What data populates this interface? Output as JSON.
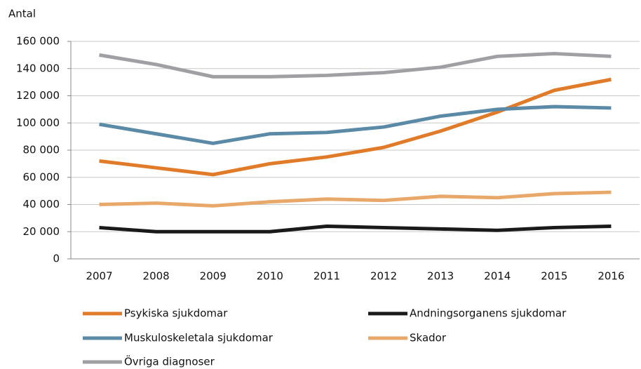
{
  "chart_data": {
    "type": "line",
    "y_label": "Antal",
    "categories": [
      "2007",
      "2008",
      "2009",
      "2010",
      "2011",
      "2012",
      "2013",
      "2014",
      "2015",
      "2016"
    ],
    "series": [
      {
        "name": "Psykiska sjukdomar",
        "color": "#e07b2a",
        "values": [
          72000,
          67000,
          62000,
          70000,
          75000,
          82000,
          94000,
          108000,
          124000,
          132000
        ]
      },
      {
        "name": "Andningsorganens sjukdomar",
        "color": "#1a1a1a",
        "values": [
          23000,
          20000,
          20000,
          20000,
          24000,
          23000,
          22000,
          21000,
          23000,
          24000
        ]
      },
      {
        "name": "Muskuloskeletala sjukdomar",
        "color": "#5b8aa6",
        "values": [
          99000,
          92000,
          85000,
          92000,
          93000,
          97000,
          105000,
          110000,
          112000,
          111000
        ]
      },
      {
        "name": "Skador",
        "color": "#e8a86a",
        "values": [
          40000,
          41000,
          39000,
          42000,
          44000,
          43000,
          46000,
          45000,
          48000,
          49000
        ]
      },
      {
        "name": "Övriga diagnoser",
        "color": "#a0a0a4",
        "values": [
          150000,
          143000,
          134000,
          134000,
          135000,
          137000,
          141000,
          149000,
          151000,
          149000
        ]
      }
    ],
    "ylim": [
      0,
      160000
    ],
    "yticks": [
      0,
      {
        "value": 20000,
        "label": "20 000"
      },
      {
        "value": 40000,
        "label": "40 000"
      },
      {
        "value": 60000,
        "label": "60 000"
      },
      {
        "value": 80000,
        "label": "80 000"
      },
      {
        "value": 100000,
        "label": "100 000"
      },
      {
        "value": 120000,
        "label": "120 000"
      },
      {
        "value": 140000,
        "label": "140 000"
      },
      {
        "value": 160000,
        "label": "160 000"
      }
    ],
    "grid": true
  }
}
